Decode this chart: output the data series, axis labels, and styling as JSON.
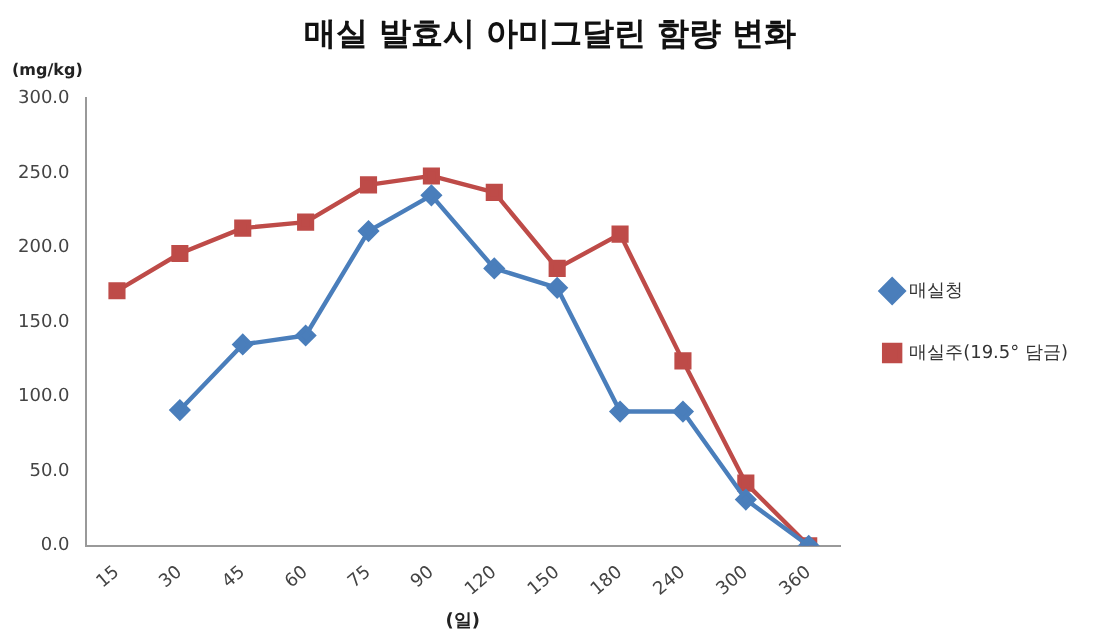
{
  "chart_data": {
    "type": "line",
    "title": "매실 발효시 아미그달린 함량 변화",
    "ylabel": "(mg/kg)",
    "xlabel": "(일)",
    "categories": [
      "15",
      "30",
      "45",
      "60",
      "75",
      "90",
      "120",
      "150",
      "180",
      "240",
      "300",
      "360"
    ],
    "series": [
      {
        "name": "매실청",
        "color": "#4a7ebb",
        "marker": "diamond",
        "values": [
          null,
          91,
          135,
          141,
          211,
          235,
          186,
          173,
          90,
          90,
          31,
          0
        ]
      },
      {
        "name": "매실주(19.5° 담금)",
        "color": "#be4b48",
        "marker": "square",
        "values": [
          171,
          196,
          213,
          217,
          242,
          248,
          237,
          186,
          209,
          124,
          42,
          0
        ]
      }
    ],
    "ylim": [
      0,
      300
    ],
    "yticks": [
      {
        "value": 0,
        "label": "0.0"
      },
      {
        "value": 50,
        "label": "50.0"
      },
      {
        "value": 100,
        "label": "100.0"
      },
      {
        "value": 150,
        "label": "150.0"
      },
      {
        "value": 200,
        "label": "200.0"
      },
      {
        "value": 250,
        "label": "250.0"
      },
      {
        "value": 300,
        "label": "300.0"
      }
    ],
    "grid": false,
    "legend": "right",
    "line_style": "solid"
  }
}
